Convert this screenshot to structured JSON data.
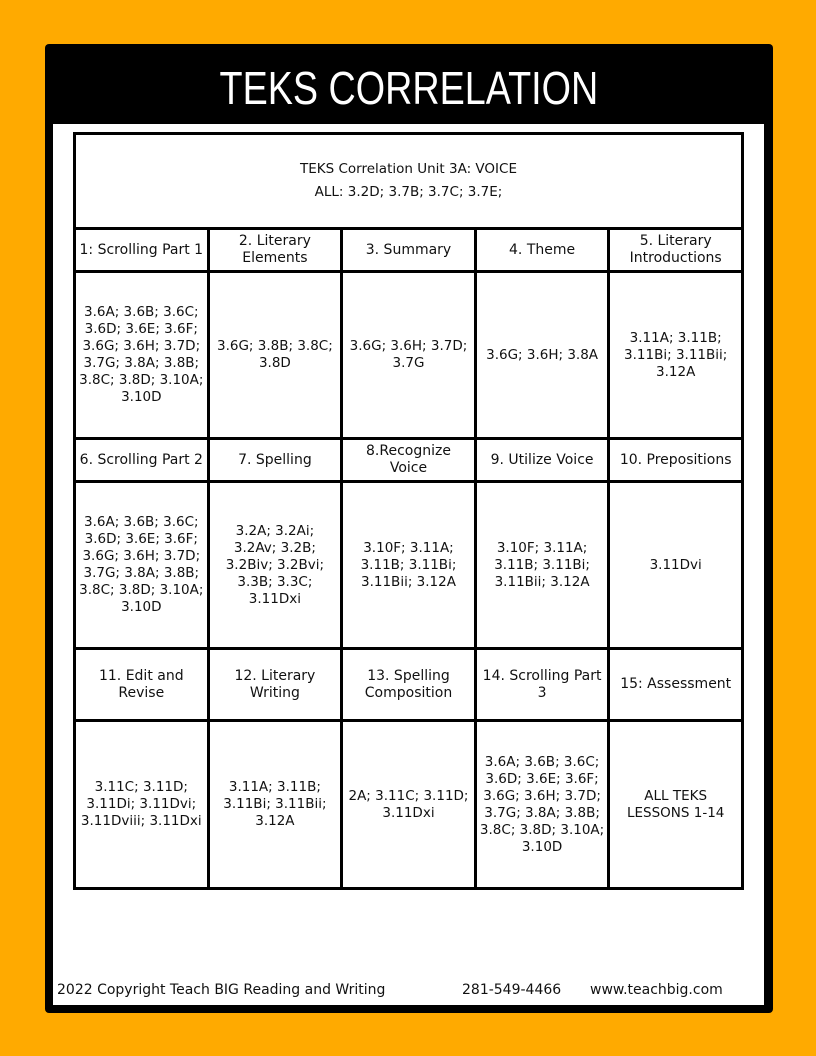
{
  "title": "TEKS CORRELATION",
  "table": {
    "heading": "TEKS Correlation Unit 3A: VOICE",
    "all_line": "ALL: 3.2D; 3.7B; 3.7C; 3.7E;",
    "groups": [
      {
        "lessons": [
          "1: Scrolling Part 1",
          "2. Literary Elements",
          "3. Summary",
          "4. Theme",
          "5. Literary Introductions"
        ],
        "teks": [
          "3.6A; 3.6B; 3.6C; 3.6D; 3.6E; 3.6F; 3.6G; 3.6H; 3.7D; 3.7G; 3.8A; 3.8B; 3.8C;  3.8D; 3.10A; 3.10D",
          "3.6G; 3.8B; 3.8C; 3.8D",
          "3.6G; 3.6H; 3.7D; 3.7G",
          "3.6G; 3.6H; 3.8A",
          "3.11A; 3.11B; 3.11Bi; 3.11Bii;  3.12A"
        ]
      },
      {
        "lessons": [
          "6. Scrolling Part 2",
          "7. Spelling",
          "8.Recognize Voice",
          "9. Utilize Voice",
          "10. Prepositions"
        ],
        "teks": [
          "3.6A; 3.6B; 3.6C; 3.6D; 3.6E; 3.6F; 3.6G; 3.6H; 3.7D; 3.7G; 3.8A; 3.8B; 3.8C;  3.8D; 3.10A; 3.10D",
          "3.2A; 3.2Ai; 3.2Av; 3.2B; 3.2Biv; 3.2Bvi; 3.3B; 3.3C; 3.11Dxi",
          "3.10F; 3.11A; 3.11B; 3.11Bi;  3.11Bii; 3.12A",
          "3.10F; 3.11A; 3.11B; 3.11Bi;  3.11Bii; 3.12A",
          "3.11Dvi"
        ]
      },
      {
        "lessons": [
          "11. Edit and Revise",
          "12. Literary Writing",
          "13. Spelling Composition",
          "14. Scrolling Part 3",
          "15: Assessment"
        ],
        "teks": [
          "3.11C; 3.11D; 3.11Di; 3.11Dvi; 3.11Dviii; 3.11Dxi",
          "3.11A; 3.11B; 3.11Bi; 3.11Bii;  3.12A",
          "2A; 3.11C; 3.11D; 3.11Dxi",
          "3.6A; 3.6B; 3.6C; 3.6D; 3.6E; 3.6F; 3.6G; 3.6H; 3.7D; 3.7G; 3.8A; 3.8B; 3.8C;  3.8D; 3.10A; 3.10D",
          "ALL TEKS LESSONS 1-14"
        ]
      }
    ]
  },
  "footer": {
    "copyright": "2022 Copyright Teach BIG Reading and Writing",
    "phone": "281-549-4466",
    "website": "www.teachbig.com"
  },
  "colors": {
    "background": "#FFAA00",
    "banner": "#000000"
  }
}
